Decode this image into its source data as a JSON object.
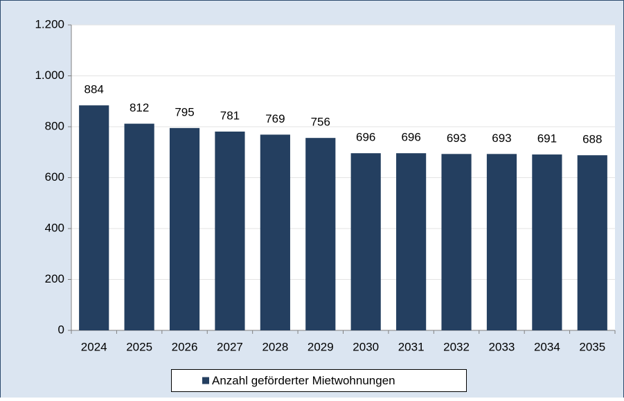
{
  "chart_data": {
    "type": "bar",
    "categories": [
      "2024",
      "2025",
      "2026",
      "2027",
      "2028",
      "2029",
      "2030",
      "2031",
      "2032",
      "2033",
      "2034",
      "2035"
    ],
    "series": [
      {
        "name": "Anzahl geförderter Mietwohnungen",
        "color": "#243f60",
        "values": [
          884,
          812,
          795,
          781,
          769,
          756,
          696,
          696,
          693,
          693,
          691,
          688
        ]
      }
    ],
    "ylim": [
      0,
      1200
    ],
    "yticks": [
      0,
      200,
      400,
      600,
      800,
      {
        "value": 1000,
        "label": "1.000"
      },
      {
        "value": 1200,
        "label": "1.200"
      }
    ],
    "grid": true,
    "legend": "bottom"
  }
}
